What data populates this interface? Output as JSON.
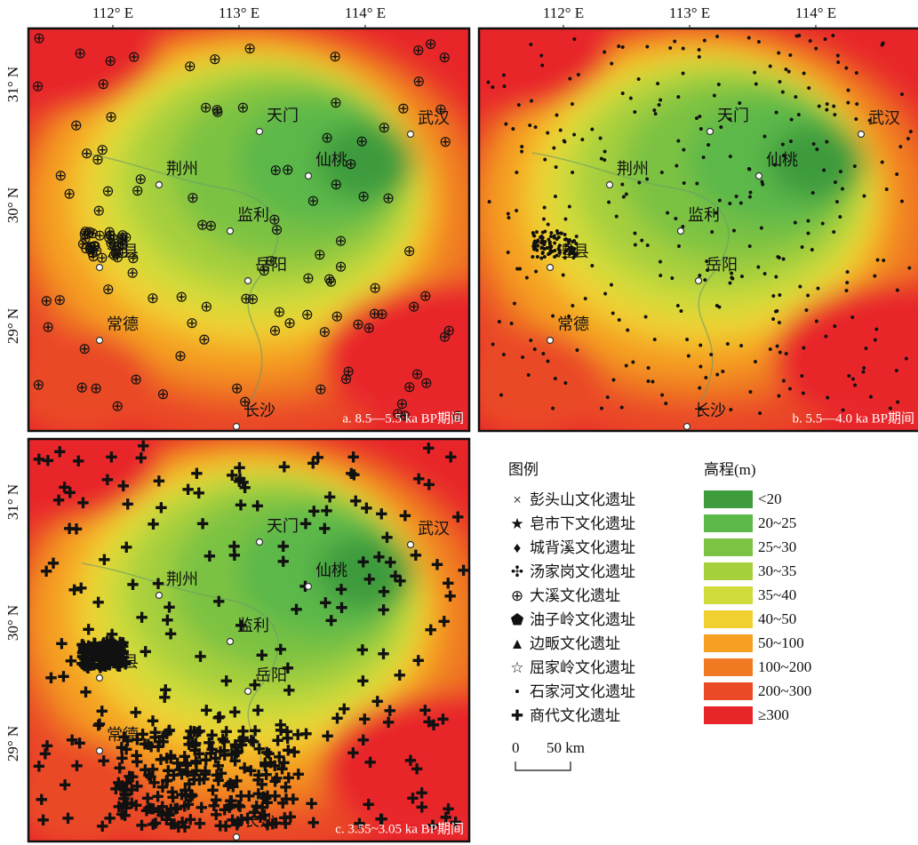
{
  "axes": {
    "longitude_labels": [
      "112° E",
      "113° E",
      "114° E"
    ],
    "latitude_labels": [
      "31° N",
      "30° N",
      "29° N"
    ]
  },
  "cities": [
    "天门",
    "武汉",
    "仙桃",
    "荆州",
    "监利",
    "澧县",
    "岳阳",
    "常德",
    "长沙"
  ],
  "panels": [
    {
      "caption": "a. 8.5—5.5 ka BP期间"
    },
    {
      "caption": "b. 5.5—4.0 ka BP期间"
    },
    {
      "caption": "c. 3.55~3.05 ka BP期间"
    }
  ],
  "legend": {
    "title": "图例",
    "items": [
      "彭头山文化遗址",
      "皂市下文化遗址",
      "城背溪文化遗址",
      "汤家岗文化遗址",
      "大溪文化遗址",
      "油子岭文化遗址",
      "边畈文化遗址",
      "屈家岭文化遗址",
      "石家河文化遗址",
      "商代文化遗址"
    ]
  },
  "elevation_legend": {
    "title": "高程(m)",
    "classes": [
      {
        "label": "<20",
        "color": "#3e9b3e"
      },
      {
        "label": "20~25",
        "color": "#5cb848"
      },
      {
        "label": "25~30",
        "color": "#7cc243"
      },
      {
        "label": "30~35",
        "color": "#a6cf3c"
      },
      {
        "label": "35~40",
        "color": "#cfdc3a"
      },
      {
        "label": "40~50",
        "color": "#f0d030"
      },
      {
        "label": "50~100",
        "color": "#f5a023"
      },
      {
        "label": "100~200",
        "color": "#f07a22"
      },
      {
        "label": "200~300",
        "color": "#ea4a26"
      },
      {
        "label": "≥300",
        "color": "#e8262a"
      }
    ]
  },
  "scale_bar": {
    "start": "0",
    "label": "50 km"
  }
}
